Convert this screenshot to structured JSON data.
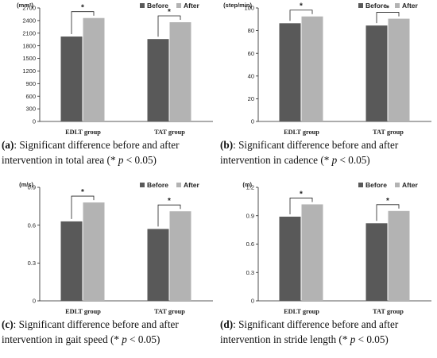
{
  "colors": {
    "before": "#595959",
    "after": "#b3b3b3",
    "axis": "#222222"
  },
  "chart_data": [
    {
      "type": "bar",
      "categories": [
        "EDLT group",
        "TAT group"
      ],
      "series": [
        {
          "name": "Before",
          "values": [
            2020,
            1960
          ]
        },
        {
          "name": "After",
          "values": [
            2460,
            2360
          ]
        }
      ],
      "ylabel": "(mm²)",
      "ylim": [
        0,
        2700
      ],
      "yticks": [
        "0",
        "300",
        "600",
        "900",
        "1200",
        "1500",
        "1800",
        "2100",
        "2400",
        "2700"
      ],
      "significance": [
        "*",
        "*"
      ],
      "legend": "top-right",
      "caption": {
        "label": "(a)",
        "text": ": Significant difference before and after intervention in total area (* ",
        "p": "p",
        "suffix": " < 0.05)"
      }
    },
    {
      "type": "bar",
      "categories": [
        "EDLT group",
        "TAT group"
      ],
      "series": [
        {
          "name": "Before",
          "values": [
            86.5,
            84.5
          ]
        },
        {
          "name": "After",
          "values": [
            92.5,
            90.5
          ]
        }
      ],
      "ylabel": "(step/min)",
      "ylim": [
        0,
        100
      ],
      "yticks": [
        "0",
        "20",
        "40",
        "60",
        "80",
        "100"
      ],
      "significance": [
        "*",
        "*"
      ],
      "legend": "top-right",
      "caption": {
        "label": "(b)",
        "text": ": Significant difference before and after intervention in cadence (* ",
        "p": "p",
        "suffix": " < 0.05)"
      }
    },
    {
      "type": "bar",
      "categories": [
        "EDLT group",
        "TAT group"
      ],
      "series": [
        {
          "name": "Before",
          "values": [
            0.63,
            0.57
          ]
        },
        {
          "name": "After",
          "values": [
            0.78,
            0.71
          ]
        }
      ],
      "ylabel": "(m/s)",
      "ylim": [
        0,
        0.9
      ],
      "yticks": [
        "0",
        "0.3",
        "0.6",
        "0.9"
      ],
      "significance": [
        "*",
        "*"
      ],
      "legend": "top-right",
      "caption": {
        "label": "(c)",
        "text": ": Significant difference before and after intervention in gait speed (* ",
        "p": "p",
        "suffix": " < 0.05)"
      }
    },
    {
      "type": "bar",
      "categories": [
        "EDLT group",
        "TAT group"
      ],
      "series": [
        {
          "name": "Before",
          "values": [
            0.89,
            0.82
          ]
        },
        {
          "name": "After",
          "values": [
            1.02,
            0.95
          ]
        }
      ],
      "ylabel": "(m)",
      "ylim": [
        0,
        1.2
      ],
      "yticks": [
        "0",
        "0.3",
        "0.6",
        "0.9",
        "1.2"
      ],
      "significance": [
        "*",
        "*"
      ],
      "legend": "top-right",
      "caption": {
        "label": "(d)",
        "text": ": Significant difference before and after intervention in stride length (* ",
        "p": "p",
        "suffix": " < 0.05)"
      }
    }
  ]
}
